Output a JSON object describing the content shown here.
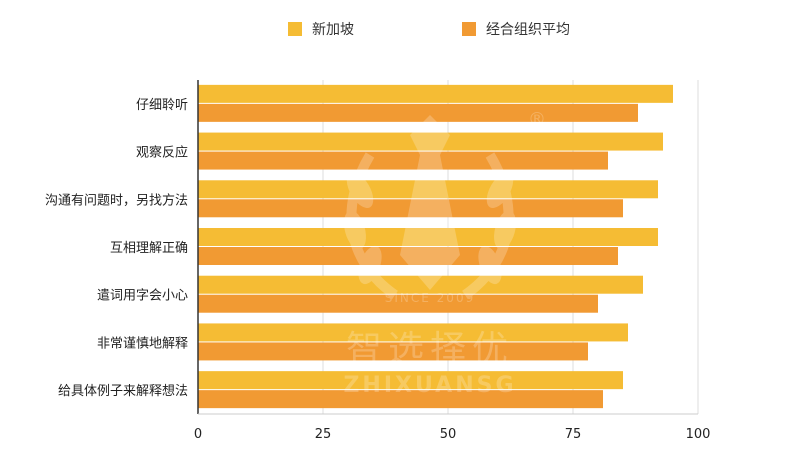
{
  "legend": [
    {
      "label": "新加坡",
      "color": "#F5BC34"
    },
    {
      "label": "经合组织平均",
      "color": "#F19A33"
    }
  ],
  "watermark": {
    "cn": "智选择优",
    "en": "ZHIXUANSG",
    "since": "SINCE 2009",
    "mark": "®"
  },
  "chart_data": {
    "type": "bar",
    "orientation": "horizontal",
    "categories": [
      "仔细聆听",
      "观察反应",
      "沟通有问题时，另找方法",
      "互相理解正确",
      "遣词用字会小心",
      "非常谨慎地解释",
      "给具体例子来解释想法"
    ],
    "series": [
      {
        "name": "新加坡",
        "color": "#F5BC34",
        "values": [
          95,
          93,
          92,
          92,
          89,
          86,
          85
        ]
      },
      {
        "name": "经合组织平均",
        "color": "#F19A33",
        "values": [
          88,
          82,
          85,
          84,
          80,
          78,
          81
        ]
      }
    ],
    "xlim": [
      0,
      100
    ],
    "xticks": [
      0,
      25,
      50,
      75,
      100
    ],
    "grid": true,
    "legend_position": "top"
  }
}
